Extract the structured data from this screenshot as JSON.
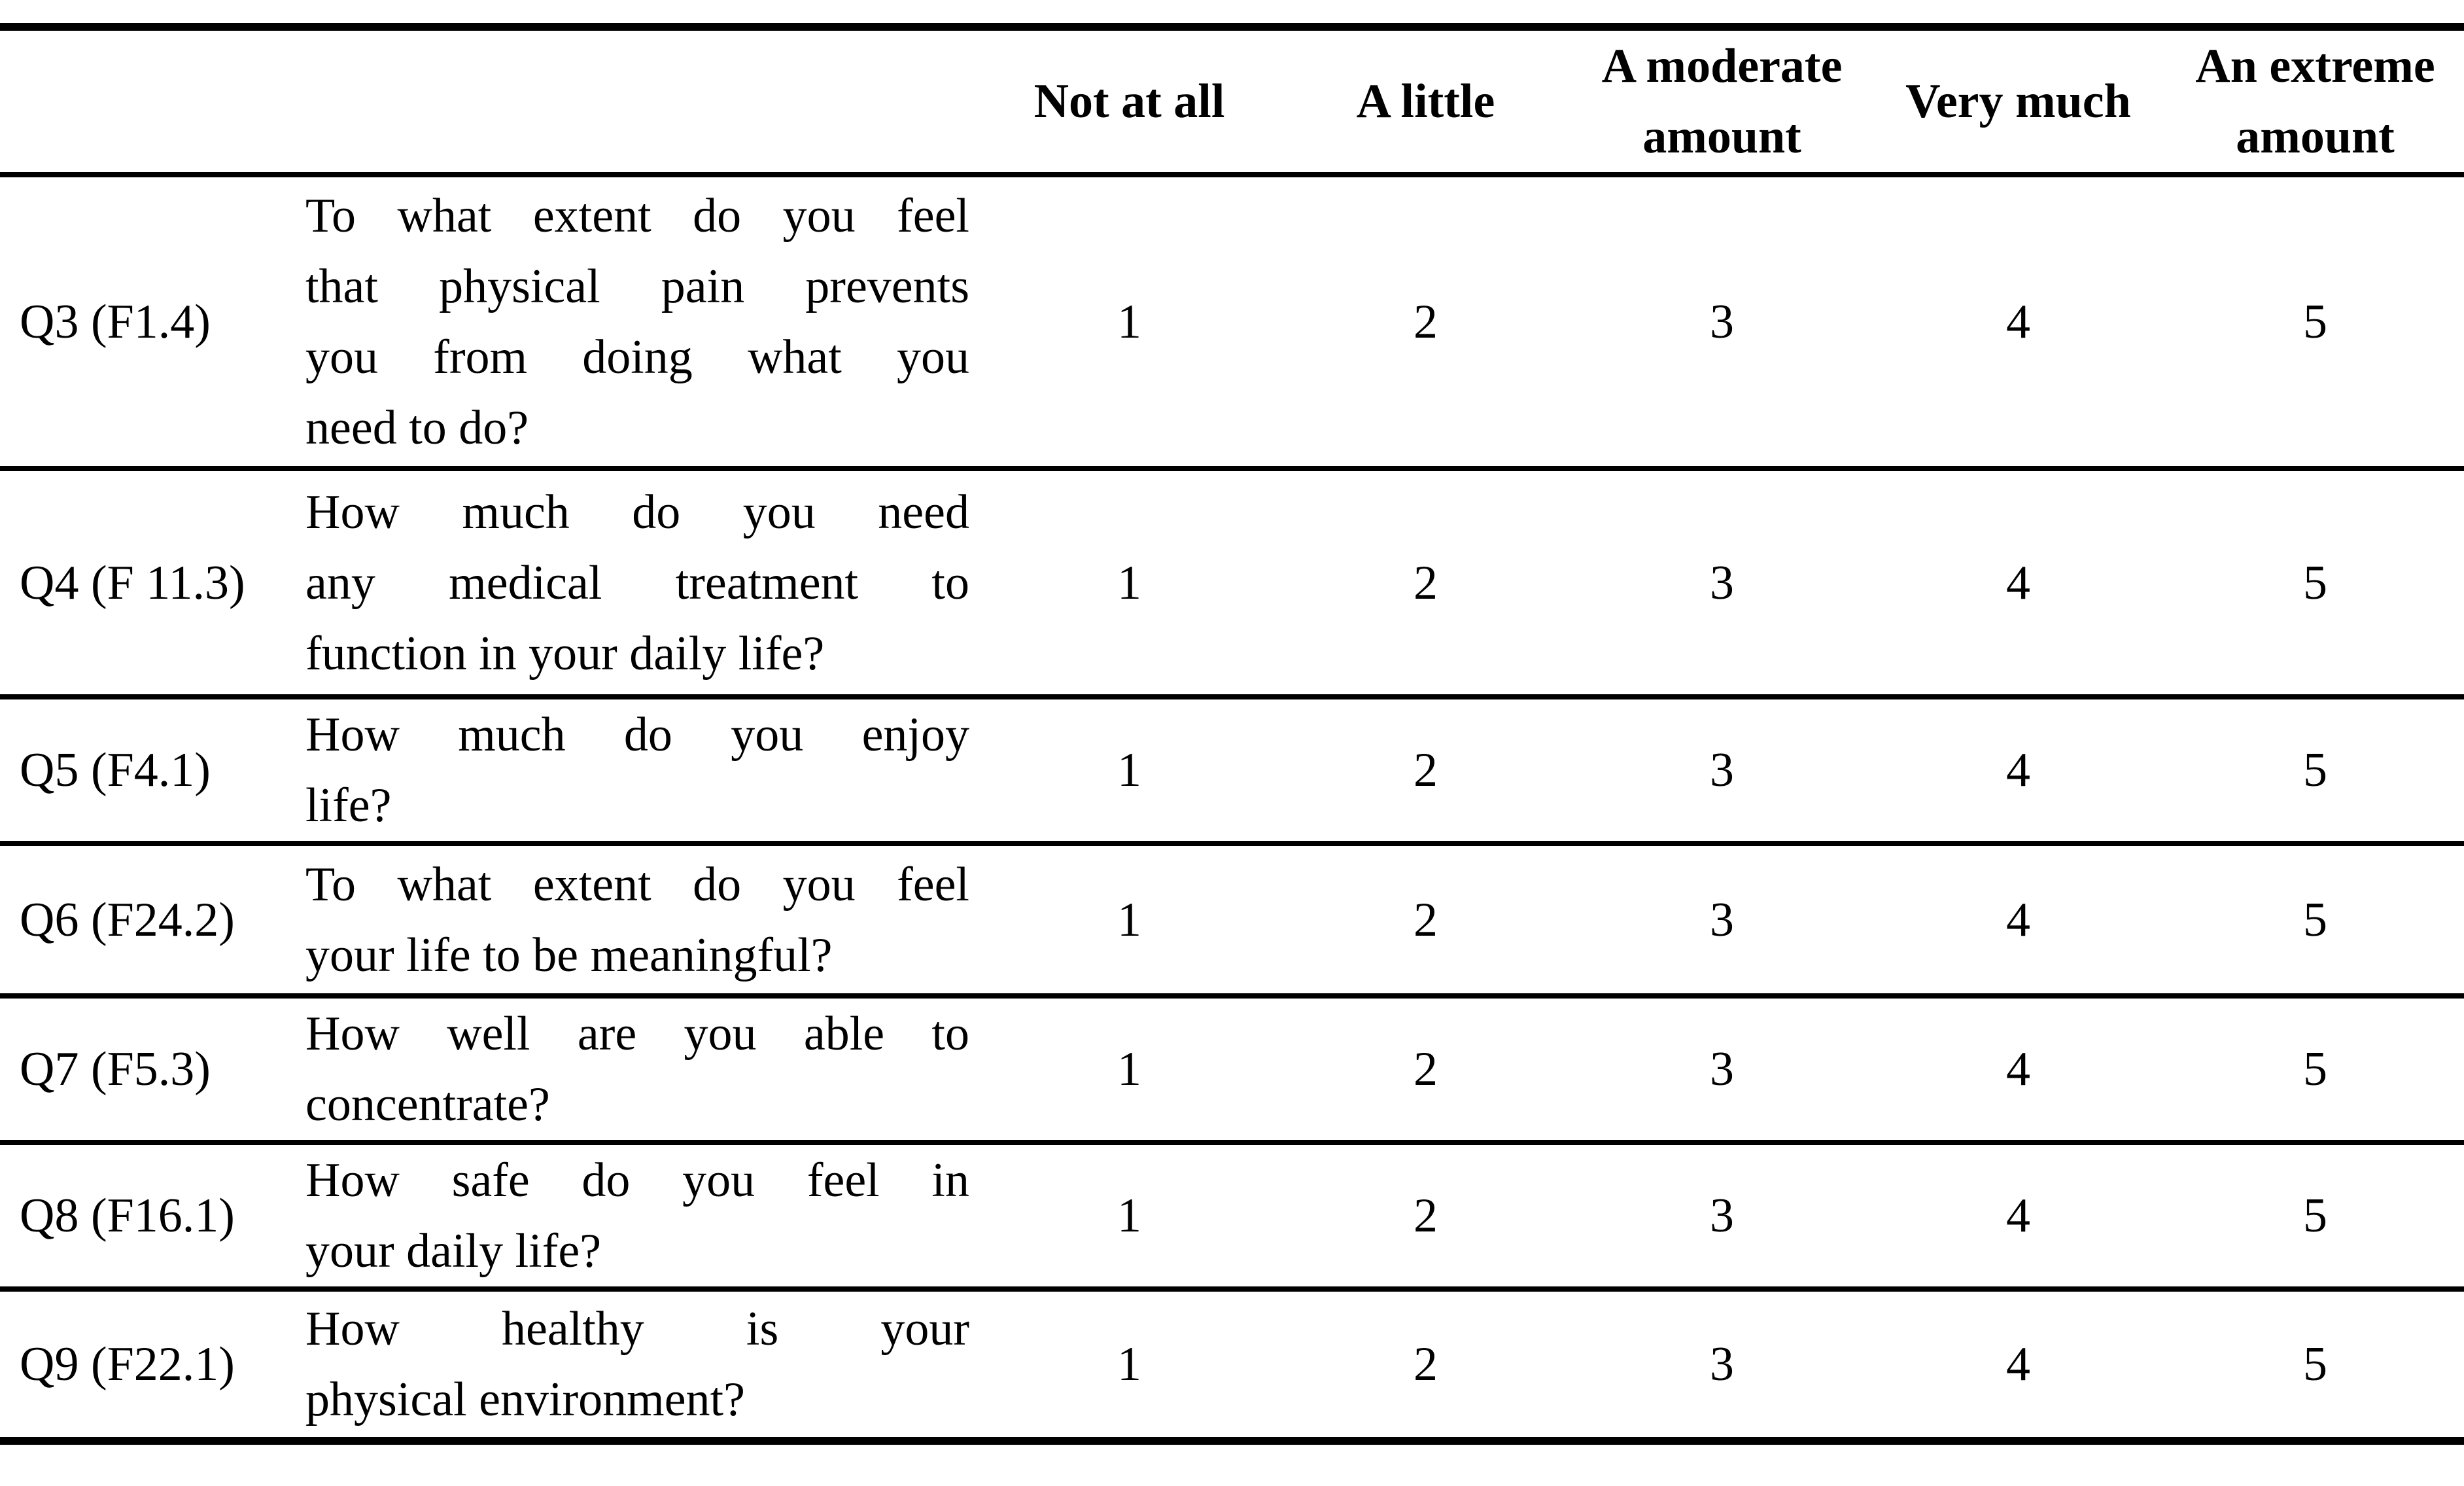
{
  "page": {
    "background_color": "#ffffff",
    "text_color": "#000000",
    "rule_color": "#000000"
  },
  "table": {
    "headers": [
      "",
      "",
      "Not at all",
      "A little",
      "A moderate amount",
      "Very much",
      "An extreme amount"
    ],
    "rows": [
      {
        "id": "Q3 (F1.4)",
        "question": "To what extent do you feel that physical pain prevents you from doing what you need to do?",
        "lines": [
          "To what extent do you feel",
          "that physical pain prevents",
          "you from doing what you",
          "need to do?"
        ],
        "scale": [
          "1",
          "2",
          "3",
          "4",
          "5"
        ]
      },
      {
        "id": "Q4 (F 11.3)",
        "question": "How much do you need any medical treatment to function in your daily life?",
        "lines": [
          "How much do you need",
          "any medical treatment to",
          "function in your daily life?"
        ],
        "scale": [
          "1",
          "2",
          "3",
          "4",
          "5"
        ]
      },
      {
        "id": "Q5 (F4.1)",
        "question": "How much do you enjoy life?",
        "lines": [
          "How much do you enjoy",
          "life?"
        ],
        "scale": [
          "1",
          "2",
          "3",
          "4",
          "5"
        ]
      },
      {
        "id": "Q6 (F24.2)",
        "question": "To what extent do you feel your life to be meaningful?",
        "lines": [
          "To what extent do you feel",
          "your life to be meaningful?"
        ],
        "scale": [
          "1",
          "2",
          "3",
          "4",
          "5"
        ]
      },
      {
        "id": "Q7 (F5.3)",
        "question": "How well are you able to concentrate?",
        "lines": [
          "How well are you able to",
          "concentrate?"
        ],
        "scale": [
          "1",
          "2",
          "3",
          "4",
          "5"
        ]
      },
      {
        "id": "Q8 (F16.1)",
        "question": "How safe do you feel in your daily life?",
        "lines": [
          "How safe do you feel in",
          "your daily life?"
        ],
        "scale": [
          "1",
          "2",
          "3",
          "4",
          "5"
        ]
      },
      {
        "id": "Q9 (F22.1)",
        "question": "How healthy is your physical environment?",
        "lines": [
          "How healthy is your",
          "physical environment?"
        ],
        "scale": [
          "1",
          "2",
          "3",
          "4",
          "5"
        ]
      }
    ]
  }
}
